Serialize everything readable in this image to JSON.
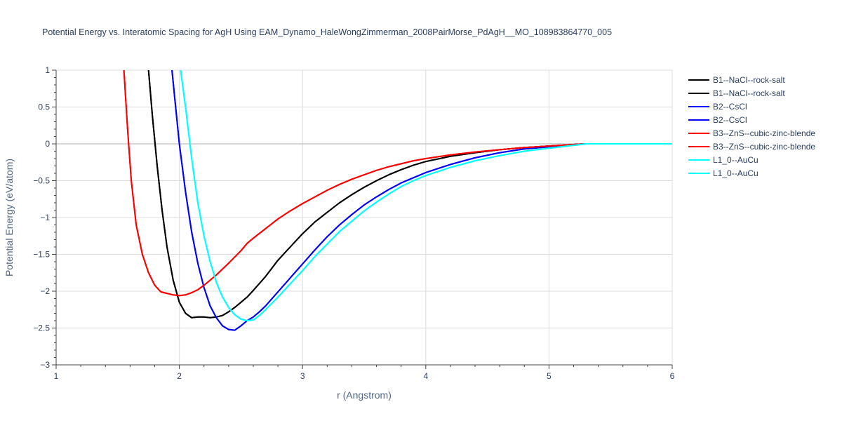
{
  "chart_data": {
    "type": "line",
    "title": "Potential Energy vs. Interatomic Spacing for AgH Using EAM_Dynamo_HaleWongZimmerman_2008PairMorse_PdAgH__MO_108983864770_005",
    "xlabel": "r (Angstrom)",
    "ylabel": "Potential Energy (eV/atom)",
    "xlim": [
      1,
      6
    ],
    "ylim": [
      -3,
      1
    ],
    "x_ticks": [
      1,
      2,
      3,
      4,
      5,
      6
    ],
    "x_tick_labels": [
      "1",
      "2",
      "3",
      "4",
      "5",
      "6"
    ],
    "y_ticks": [
      1,
      0.5,
      0,
      -0.5,
      -1,
      -1.5,
      -2,
      -2.5,
      -3
    ],
    "y_tick_labels": [
      "1",
      "0.5",
      "0",
      "−0.5",
      "−1",
      "−1.5",
      "−2",
      "−2.5",
      "−3"
    ],
    "grid": true,
    "legend_position": "right",
    "series": [
      {
        "name": "B1--NaCl--rock-salt",
        "color": "#000000",
        "x": [
          1.75,
          1.78,
          1.82,
          1.86,
          1.9,
          1.95,
          2.0,
          2.05,
          2.1,
          2.15,
          2.2,
          2.25,
          2.3,
          2.35,
          2.4,
          2.45,
          2.5,
          2.55,
          2.6,
          2.7,
          2.8,
          2.9,
          3.0,
          3.1,
          3.2,
          3.3,
          3.4,
          3.5,
          3.6,
          3.7,
          3.8,
          3.9,
          4.0,
          4.2,
          4.4,
          4.6,
          4.8,
          5.0,
          5.2,
          5.3,
          5.5,
          6.0
        ],
        "y": [
          1.0,
          0.4,
          -0.3,
          -0.9,
          -1.4,
          -1.85,
          -2.15,
          -2.3,
          -2.36,
          -2.35,
          -2.35,
          -2.36,
          -2.35,
          -2.33,
          -2.28,
          -2.22,
          -2.15,
          -2.08,
          -1.99,
          -1.8,
          -1.58,
          -1.4,
          -1.22,
          -1.06,
          -0.93,
          -0.8,
          -0.69,
          -0.59,
          -0.5,
          -0.42,
          -0.35,
          -0.29,
          -0.24,
          -0.17,
          -0.12,
          -0.08,
          -0.05,
          -0.03,
          -0.01,
          0.0,
          0.0,
          0.0
        ]
      },
      {
        "name": "B1--NaCl--rock-salt",
        "color": "#000000",
        "x": [
          1.75,
          1.78,
          1.82,
          1.86,
          1.9,
          1.95,
          2.0,
          2.05,
          2.1,
          2.15,
          2.2,
          2.25,
          2.3,
          2.35,
          2.4,
          2.45,
          2.5,
          2.55,
          2.6,
          2.7,
          2.8,
          2.9,
          3.0,
          3.1,
          3.2,
          3.3,
          3.4,
          3.5,
          3.6,
          3.7,
          3.8,
          3.9,
          4.0,
          4.2,
          4.4,
          4.6,
          4.8,
          5.0,
          5.2,
          5.3,
          5.5,
          6.0
        ],
        "y": [
          1.0,
          0.4,
          -0.3,
          -0.9,
          -1.4,
          -1.85,
          -2.15,
          -2.3,
          -2.36,
          -2.35,
          -2.35,
          -2.36,
          -2.35,
          -2.33,
          -2.28,
          -2.22,
          -2.15,
          -2.08,
          -1.99,
          -1.8,
          -1.58,
          -1.4,
          -1.22,
          -1.06,
          -0.93,
          -0.8,
          -0.69,
          -0.59,
          -0.5,
          -0.42,
          -0.35,
          -0.29,
          -0.24,
          -0.17,
          -0.12,
          -0.08,
          -0.05,
          -0.03,
          -0.01,
          0.0,
          0.0,
          0.0
        ]
      },
      {
        "name": "B2--CsCl",
        "color": "#0000ff",
        "x": [
          1.94,
          1.97,
          2.0,
          2.05,
          2.1,
          2.15,
          2.2,
          2.25,
          2.3,
          2.35,
          2.4,
          2.45,
          2.5,
          2.55,
          2.6,
          2.65,
          2.7,
          2.8,
          2.9,
          3.0,
          3.1,
          3.2,
          3.3,
          3.4,
          3.5,
          3.6,
          3.7,
          3.8,
          3.9,
          4.0,
          4.2,
          4.4,
          4.6,
          4.8,
          5.0,
          5.2,
          5.3,
          5.5,
          6.0
        ],
        "y": [
          1.0,
          0.5,
          0.0,
          -0.65,
          -1.2,
          -1.62,
          -1.95,
          -2.2,
          -2.36,
          -2.47,
          -2.52,
          -2.53,
          -2.47,
          -2.4,
          -2.35,
          -2.28,
          -2.2,
          -2.01,
          -1.82,
          -1.63,
          -1.44,
          -1.26,
          -1.1,
          -0.96,
          -0.83,
          -0.72,
          -0.62,
          -0.53,
          -0.46,
          -0.39,
          -0.28,
          -0.19,
          -0.12,
          -0.07,
          -0.04,
          -0.01,
          0.0,
          0.0,
          0.0
        ]
      },
      {
        "name": "B2--CsCl",
        "color": "#0000ff",
        "x": [
          1.94,
          1.97,
          2.0,
          2.05,
          2.1,
          2.15,
          2.2,
          2.25,
          2.3,
          2.35,
          2.4,
          2.45,
          2.5,
          2.55,
          2.6,
          2.65,
          2.7,
          2.8,
          2.9,
          3.0,
          3.1,
          3.2,
          3.3,
          3.4,
          3.5,
          3.6,
          3.7,
          3.8,
          3.9,
          4.0,
          4.2,
          4.4,
          4.6,
          4.8,
          5.0,
          5.2,
          5.3,
          5.5,
          6.0
        ],
        "y": [
          1.0,
          0.5,
          0.0,
          -0.65,
          -1.2,
          -1.62,
          -1.95,
          -2.2,
          -2.36,
          -2.47,
          -2.52,
          -2.53,
          -2.47,
          -2.4,
          -2.35,
          -2.28,
          -2.2,
          -2.01,
          -1.82,
          -1.63,
          -1.44,
          -1.26,
          -1.1,
          -0.96,
          -0.83,
          -0.72,
          -0.62,
          -0.53,
          -0.46,
          -0.39,
          -0.28,
          -0.19,
          -0.12,
          -0.07,
          -0.04,
          -0.01,
          0.0,
          0.0,
          0.0
        ]
      },
      {
        "name": "B3--ZnS--cubic-zinc-blende",
        "color": "#ff0000",
        "x": [
          1.55,
          1.58,
          1.61,
          1.65,
          1.7,
          1.75,
          1.8,
          1.85,
          1.9,
          1.95,
          2.0,
          2.05,
          2.1,
          2.15,
          2.2,
          2.3,
          2.4,
          2.5,
          2.55,
          2.6,
          2.7,
          2.8,
          2.9,
          3.0,
          3.1,
          3.2,
          3.3,
          3.4,
          3.5,
          3.6,
          3.7,
          3.8,
          3.9,
          4.0,
          4.2,
          4.4,
          4.6,
          4.8,
          5.0,
          5.2,
          5.3,
          5.5,
          6.0
        ],
        "y": [
          1.0,
          0.2,
          -0.5,
          -1.1,
          -1.5,
          -1.75,
          -1.92,
          -2.01,
          -2.03,
          -2.05,
          -2.06,
          -2.05,
          -2.02,
          -1.98,
          -1.92,
          -1.78,
          -1.62,
          -1.45,
          -1.35,
          -1.28,
          -1.15,
          -1.02,
          -0.91,
          -0.81,
          -0.72,
          -0.63,
          -0.55,
          -0.48,
          -0.42,
          -0.36,
          -0.31,
          -0.27,
          -0.23,
          -0.2,
          -0.15,
          -0.11,
          -0.08,
          -0.05,
          -0.03,
          -0.01,
          0.0,
          0.0,
          0.0
        ]
      },
      {
        "name": "B3--ZnS--cubic-zinc-blende",
        "color": "#ff0000",
        "x": [
          1.55,
          1.58,
          1.61,
          1.65,
          1.7,
          1.75,
          1.8,
          1.85,
          1.9,
          1.95,
          2.0,
          2.05,
          2.1,
          2.15,
          2.2,
          2.3,
          2.4,
          2.5,
          2.55,
          2.6,
          2.7,
          2.8,
          2.9,
          3.0,
          3.1,
          3.2,
          3.3,
          3.4,
          3.5,
          3.6,
          3.7,
          3.8,
          3.9,
          4.0,
          4.2,
          4.4,
          4.6,
          4.8,
          5.0,
          5.2,
          5.3,
          5.5,
          6.0
        ],
        "y": [
          1.0,
          0.2,
          -0.5,
          -1.1,
          -1.5,
          -1.75,
          -1.92,
          -2.01,
          -2.03,
          -2.05,
          -2.06,
          -2.05,
          -2.02,
          -1.98,
          -1.92,
          -1.78,
          -1.62,
          -1.45,
          -1.35,
          -1.28,
          -1.15,
          -1.02,
          -0.91,
          -0.81,
          -0.72,
          -0.63,
          -0.55,
          -0.48,
          -0.42,
          -0.36,
          -0.31,
          -0.27,
          -0.23,
          -0.2,
          -0.15,
          -0.11,
          -0.08,
          -0.05,
          -0.03,
          -0.01,
          0.0,
          0.0,
          0.0
        ]
      },
      {
        "name": "L1_0--AuCu",
        "color": "#00ffff",
        "x": [
          2.01,
          2.05,
          2.1,
          2.15,
          2.2,
          2.25,
          2.3,
          2.35,
          2.4,
          2.45,
          2.5,
          2.55,
          2.6,
          2.65,
          2.7,
          2.8,
          2.9,
          3.0,
          3.1,
          3.2,
          3.3,
          3.4,
          3.5,
          3.6,
          3.7,
          3.8,
          3.9,
          4.0,
          4.2,
          4.4,
          4.6,
          4.8,
          5.0,
          5.2,
          5.3,
          5.5,
          6.0
        ],
        "y": [
          1.0,
          0.5,
          -0.2,
          -0.8,
          -1.25,
          -1.6,
          -1.88,
          -2.08,
          -2.22,
          -2.32,
          -2.38,
          -2.4,
          -2.39,
          -2.33,
          -2.25,
          -2.08,
          -1.9,
          -1.72,
          -1.53,
          -1.36,
          -1.19,
          -1.05,
          -0.91,
          -0.79,
          -0.68,
          -0.58,
          -0.5,
          -0.43,
          -0.32,
          -0.23,
          -0.16,
          -0.1,
          -0.06,
          -0.02,
          0.0,
          0.0,
          0.0
        ]
      },
      {
        "name": "L1_0--AuCu",
        "color": "#00ffff",
        "x": [
          2.01,
          2.05,
          2.1,
          2.15,
          2.2,
          2.25,
          2.3,
          2.35,
          2.4,
          2.45,
          2.5,
          2.55,
          2.6,
          2.65,
          2.7,
          2.8,
          2.9,
          3.0,
          3.1,
          3.2,
          3.3,
          3.4,
          3.5,
          3.6,
          3.7,
          3.8,
          3.9,
          4.0,
          4.2,
          4.4,
          4.6,
          4.8,
          5.0,
          5.2,
          5.3,
          5.5,
          6.0
        ],
        "y": [
          1.0,
          0.5,
          -0.2,
          -0.8,
          -1.25,
          -1.6,
          -1.88,
          -2.08,
          -2.22,
          -2.32,
          -2.38,
          -2.4,
          -2.39,
          -2.33,
          -2.25,
          -2.08,
          -1.9,
          -1.72,
          -1.53,
          -1.36,
          -1.19,
          -1.05,
          -0.91,
          -0.79,
          -0.68,
          -0.58,
          -0.5,
          -0.43,
          -0.32,
          -0.23,
          -0.16,
          -0.1,
          -0.06,
          -0.02,
          0.0,
          0.0,
          0.0
        ]
      }
    ]
  }
}
